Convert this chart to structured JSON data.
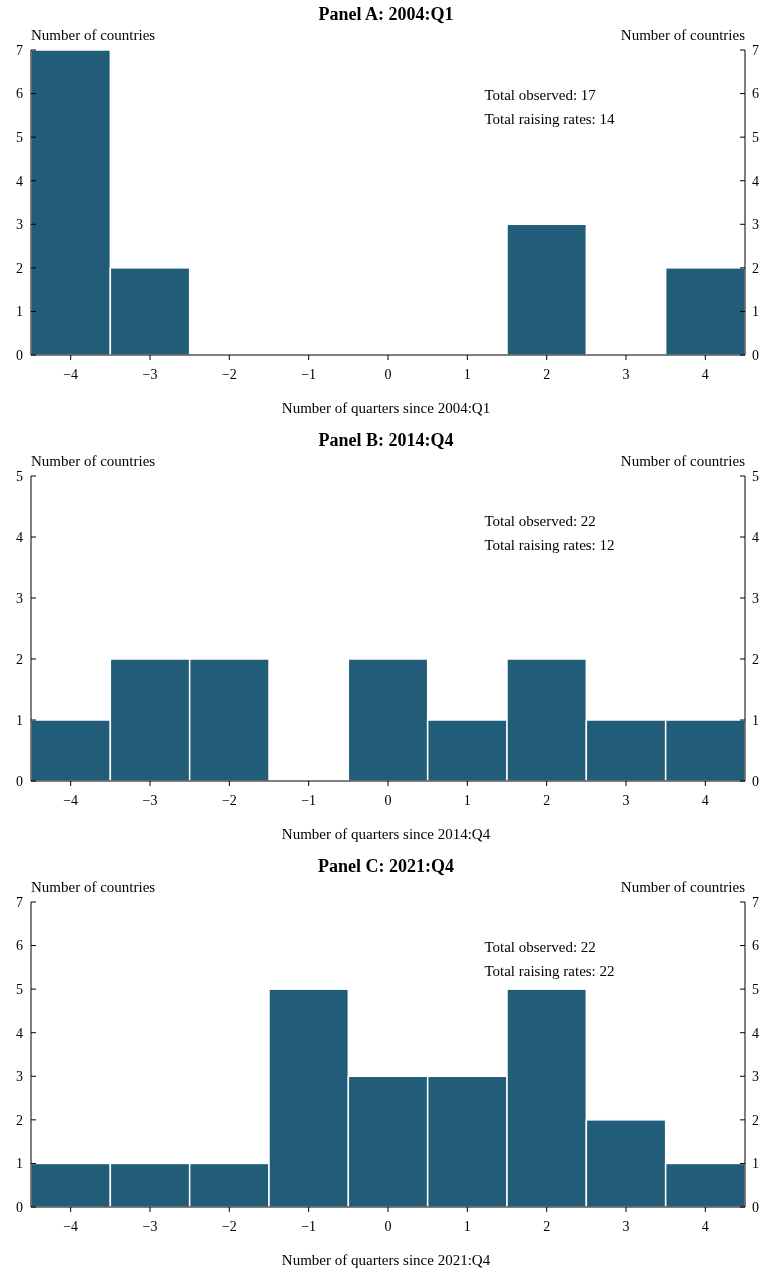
{
  "chart_data": [
    {
      "type": "bar",
      "title": "Panel A: 2004:Q1",
      "xlabel": "Number of quarters since 2004:Q1",
      "ylabel": "Number of countries",
      "y2label": "Number of countries",
      "categories": [
        "−4",
        "−3",
        "−2",
        "−1",
        "0",
        "1",
        "2",
        "3",
        "4"
      ],
      "values": [
        7,
        2,
        0,
        0,
        0,
        0,
        3,
        0,
        2
      ],
      "color": "#215d78",
      "ylim": [
        0,
        7
      ],
      "yticks": [
        0,
        1,
        2,
        3,
        4,
        5,
        6,
        7
      ],
      "y2lim": [
        0,
        7
      ],
      "y2ticks": [
        0,
        1,
        2,
        3,
        4,
        5,
        6,
        7
      ],
      "annotations": [
        "Total observed: 17",
        "Total raising rates: 14"
      ]
    },
    {
      "type": "bar",
      "title": "Panel B: 2014:Q4",
      "xlabel": "Number of quarters since 2014:Q4",
      "ylabel": "Number of countries",
      "y2label": "Number of countries",
      "categories": [
        "−4",
        "−3",
        "−2",
        "−1",
        "0",
        "1",
        "2",
        "3",
        "4"
      ],
      "values": [
        1,
        2,
        2,
        0,
        2,
        1,
        2,
        1,
        1
      ],
      "color": "#215d78",
      "ylim": [
        0,
        5
      ],
      "yticks": [
        0,
        1,
        2,
        3,
        4,
        5
      ],
      "y2lim": [
        0,
        5
      ],
      "y2ticks": [
        0,
        1,
        2,
        3,
        4,
        5
      ],
      "annotations": [
        "Total observed: 22",
        "Total raising rates: 12"
      ]
    },
    {
      "type": "bar",
      "title": "Panel C: 2021:Q4",
      "xlabel": "Number of quarters since 2021:Q4",
      "ylabel": "Number of countries",
      "y2label": "Number of countries",
      "categories": [
        "−4",
        "−3",
        "−2",
        "−1",
        "0",
        "1",
        "2",
        "3",
        "4"
      ],
      "values": [
        1,
        1,
        1,
        5,
        3,
        3,
        5,
        2,
        1
      ],
      "color": "#215d78",
      "ylim": [
        0,
        7
      ],
      "yticks": [
        0,
        1,
        2,
        3,
        4,
        5,
        6,
        7
      ],
      "y2lim": [
        0,
        7
      ],
      "y2ticks": [
        0,
        1,
        2,
        3,
        4,
        5,
        6,
        7
      ],
      "annotations": [
        "Total observed: 22",
        "Total raising rates: 22"
      ]
    }
  ]
}
